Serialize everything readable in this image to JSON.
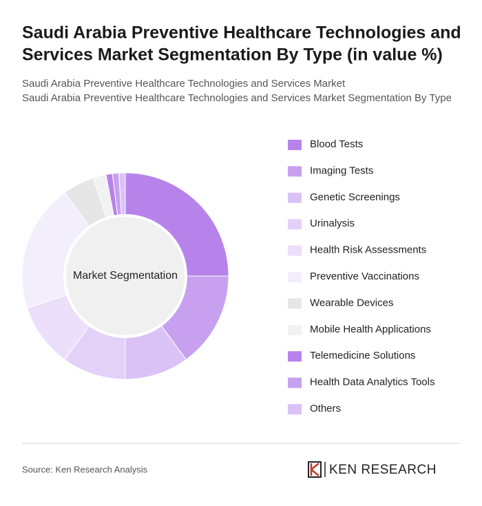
{
  "chart_data": {
    "type": "donut",
    "title": [
      "Saudi Arabia Preventive Healthcare Technologies and",
      "Services Market Segmentation By Type (in value %)"
    ],
    "subtitle": [
      "Saudi Arabia Preventive Healthcare Technologies and Services Market",
      "Saudi Arabia Preventive Healthcare Technologies and Services Market Segmentation By Type"
    ],
    "center_label": "Market Segmentation",
    "categories": [
      "Blood Tests",
      "Imaging Tests",
      "Genetic Screenings",
      "Urinalysis",
      "Health Risk Assessments",
      "Preventive Vaccinations",
      "Wearable Devices",
      "Mobile Health Applications",
      "Telemedicine Solutions",
      "Health Data Analytics Tools",
      "Others"
    ],
    "values": [
      25,
      15,
      10,
      10,
      10,
      20,
      5,
      2,
      1,
      1,
      1
    ],
    "colors": [
      "#b783ea",
      "#c7a0f0",
      "#dac2f6",
      "#e3d1f8",
      "#ecdffb",
      "#f3eefc",
      "#e6e6e6",
      "#f2f2f2",
      "#b783ea",
      "#c7a0f0",
      "#dac2f6"
    ]
  },
  "footer": {
    "source": "Source: Ken Research Analysis",
    "brand": "KEN RESEARCH"
  }
}
